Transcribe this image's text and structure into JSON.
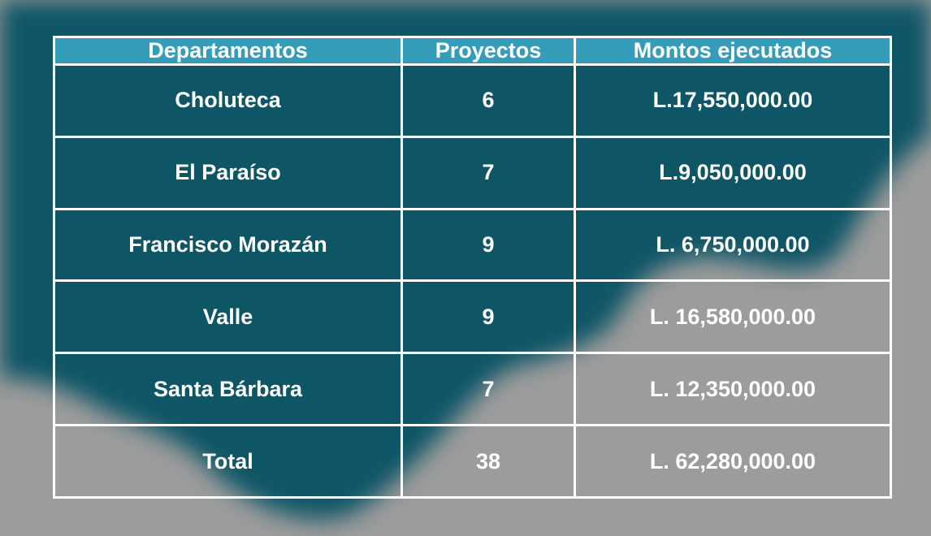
{
  "table": {
    "headers": [
      "Departamentos",
      "Proyectos",
      "Montos ejecutados"
    ],
    "rows": [
      [
        "Choluteca",
        "6",
        "L.17,550,000.00"
      ],
      [
        "El Paraíso",
        "7",
        "L.9,050,000.00"
      ],
      [
        "Francisco Morazán",
        "9",
        "L. 6,750,000.00"
      ],
      [
        "Valle",
        "9",
        "L. 16,580,000.00"
      ],
      [
        "Santa Bárbara",
        "7",
        "L. 12,350,000.00"
      ]
    ],
    "total": [
      "Total",
      "38",
      "L. 62,280,000.00"
    ]
  },
  "colors": {
    "background": "#9c9c9c",
    "map": "#0e5566",
    "header": "#3caac8",
    "border": "#ffffff",
    "text": "#ffffff"
  }
}
